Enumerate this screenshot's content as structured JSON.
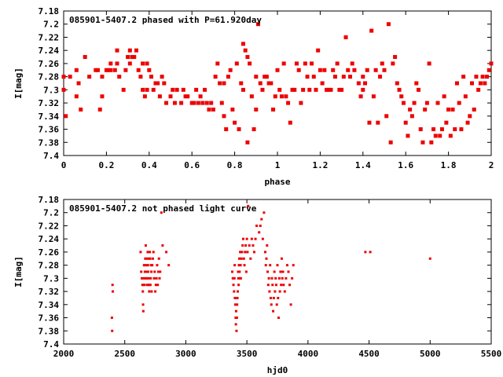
{
  "chart_data": [
    {
      "type": "scatter",
      "title": "085901-5407.2 phased with P=61.920day",
      "xlabel": "phase",
      "ylabel": "I[mag]",
      "xlim": [
        0,
        2
      ],
      "ylim": [
        7.4,
        7.18
      ],
      "y_inverted": true,
      "xticks": [
        "0",
        "0.2",
        "0.4",
        "0.6",
        "0.8",
        "1",
        "1.2",
        "1.4",
        "1.6",
        "1.8",
        "2"
      ],
      "yticks": [
        "7.18",
        "7.2",
        "7.22",
        "7.24",
        "7.26",
        "7.28",
        "7.3",
        "7.32",
        "7.34",
        "7.36",
        "7.38",
        "7.4"
      ],
      "marker_color": "#ee0000",
      "points": [
        [
          0.0,
          7.28
        ],
        [
          0.0,
          7.3
        ],
        [
          0.01,
          7.34
        ],
        [
          0.03,
          7.28
        ],
        [
          0.06,
          7.27
        ],
        [
          0.06,
          7.31
        ],
        [
          0.07,
          7.29
        ],
        [
          0.08,
          7.33
        ],
        [
          0.1,
          7.25
        ],
        [
          0.12,
          7.28
        ],
        [
          0.15,
          7.27
        ],
        [
          0.16,
          7.27
        ],
        [
          0.17,
          7.33
        ],
        [
          0.18,
          7.31
        ],
        [
          0.18,
          7.28
        ],
        [
          0.2,
          7.27
        ],
        [
          0.21,
          7.27
        ],
        [
          0.22,
          7.27
        ],
        [
          0.22,
          7.26
        ],
        [
          0.24,
          7.27
        ],
        [
          0.25,
          7.26
        ],
        [
          0.25,
          7.24
        ],
        [
          0.26,
          7.28
        ],
        [
          0.28,
          7.3
        ],
        [
          0.29,
          7.27
        ],
        [
          0.3,
          7.25
        ],
        [
          0.31,
          7.26
        ],
        [
          0.31,
          7.24
        ],
        [
          0.32,
          7.25
        ],
        [
          0.33,
          7.25
        ],
        [
          0.34,
          7.24
        ],
        [
          0.35,
          7.27
        ],
        [
          0.36,
          7.28
        ],
        [
          0.37,
          7.3
        ],
        [
          0.37,
          7.26
        ],
        [
          0.38,
          7.31
        ],
        [
          0.39,
          7.3
        ],
        [
          0.39,
          7.26
        ],
        [
          0.4,
          7.27
        ],
        [
          0.41,
          7.28
        ],
        [
          0.42,
          7.3
        ],
        [
          0.43,
          7.29
        ],
        [
          0.44,
          7.29
        ],
        [
          0.45,
          7.31
        ],
        [
          0.46,
          7.28
        ],
        [
          0.47,
          7.29
        ],
        [
          0.48,
          7.32
        ],
        [
          0.5,
          7.31
        ],
        [
          0.51,
          7.3
        ],
        [
          0.52,
          7.32
        ],
        [
          0.53,
          7.3
        ],
        [
          0.55,
          7.32
        ],
        [
          0.56,
          7.3
        ],
        [
          0.57,
          7.31
        ],
        [
          0.58,
          7.31
        ],
        [
          0.6,
          7.32
        ],
        [
          0.61,
          7.32
        ],
        [
          0.62,
          7.3
        ],
        [
          0.63,
          7.32
        ],
        [
          0.64,
          7.31
        ],
        [
          0.65,
          7.32
        ],
        [
          0.66,
          7.3
        ],
        [
          0.67,
          7.32
        ],
        [
          0.68,
          7.33
        ],
        [
          0.69,
          7.32
        ],
        [
          0.7,
          7.33
        ],
        [
          0.71,
          7.28
        ],
        [
          0.72,
          7.26
        ],
        [
          0.73,
          7.29
        ],
        [
          0.74,
          7.32
        ],
        [
          0.75,
          7.34
        ],
        [
          0.75,
          7.29
        ],
        [
          0.76,
          7.36
        ],
        [
          0.77,
          7.28
        ],
        [
          0.78,
          7.27
        ],
        [
          0.79,
          7.33
        ],
        [
          0.8,
          7.35
        ],
        [
          0.81,
          7.26
        ],
        [
          0.82,
          7.36
        ],
        [
          0.83,
          7.29
        ],
        [
          0.84,
          7.23
        ],
        [
          0.84,
          7.3
        ],
        [
          0.85,
          7.24
        ],
        [
          0.86,
          7.25
        ],
        [
          0.86,
          7.38
        ],
        [
          0.87,
          7.26
        ],
        [
          0.88,
          7.31
        ],
        [
          0.89,
          7.36
        ],
        [
          0.9,
          7.28
        ],
        [
          0.9,
          7.33
        ],
        [
          0.91,
          7.2
        ],
        [
          0.92,
          7.29
        ],
        [
          0.93,
          7.3
        ],
        [
          0.94,
          7.28
        ],
        [
          0.95,
          7.28
        ],
        [
          0.96,
          7.29
        ],
        [
          0.97,
          7.29
        ],
        [
          0.98,
          7.33
        ],
        [
          0.99,
          7.31
        ],
        [
          1.0,
          7.27
        ],
        [
          1.01,
          7.3
        ],
        [
          1.02,
          7.31
        ],
        [
          1.03,
          7.26
        ],
        [
          1.04,
          7.31
        ],
        [
          1.05,
          7.32
        ],
        [
          1.06,
          7.35
        ],
        [
          1.07,
          7.3
        ],
        [
          1.08,
          7.3
        ],
        [
          1.09,
          7.26
        ],
        [
          1.1,
          7.27
        ],
        [
          1.11,
          7.32
        ],
        [
          1.12,
          7.3
        ],
        [
          1.13,
          7.26
        ],
        [
          1.14,
          7.28
        ],
        [
          1.15,
          7.3
        ],
        [
          1.16,
          7.26
        ],
        [
          1.17,
          7.28
        ],
        [
          1.18,
          7.3
        ],
        [
          1.19,
          7.24
        ],
        [
          1.2,
          7.27
        ],
        [
          1.21,
          7.29
        ],
        [
          1.22,
          7.27
        ],
        [
          1.23,
          7.3
        ],
        [
          1.24,
          7.3
        ],
        [
          1.25,
          7.3
        ],
        [
          1.26,
          7.27
        ],
        [
          1.27,
          7.28
        ],
        [
          1.28,
          7.26
        ],
        [
          1.29,
          7.3
        ],
        [
          1.3,
          7.3
        ],
        [
          1.31,
          7.28
        ],
        [
          1.32,
          7.22
        ],
        [
          1.33,
          7.27
        ],
        [
          1.34,
          7.28
        ],
        [
          1.35,
          7.26
        ],
        [
          1.36,
          7.27
        ],
        [
          1.38,
          7.29
        ],
        [
          1.39,
          7.31
        ],
        [
          1.4,
          7.28
        ],
        [
          1.4,
          7.3
        ],
        [
          1.41,
          7.29
        ],
        [
          1.42,
          7.27
        ],
        [
          1.43,
          7.35
        ],
        [
          1.44,
          7.21
        ],
        [
          1.45,
          7.31
        ],
        [
          1.46,
          7.27
        ],
        [
          1.47,
          7.35
        ],
        [
          1.48,
          7.28
        ],
        [
          1.49,
          7.26
        ],
        [
          1.5,
          7.27
        ],
        [
          1.51,
          7.34
        ],
        [
          1.52,
          7.2
        ],
        [
          1.53,
          7.38
        ],
        [
          1.54,
          7.26
        ],
        [
          1.55,
          7.25
        ],
        [
          1.56,
          7.29
        ],
        [
          1.57,
          7.3
        ],
        [
          1.58,
          7.31
        ],
        [
          1.59,
          7.32
        ],
        [
          1.6,
          7.35
        ],
        [
          1.61,
          7.37
        ],
        [
          1.62,
          7.33
        ],
        [
          1.63,
          7.34
        ],
        [
          1.64,
          7.32
        ],
        [
          1.65,
          7.29
        ],
        [
          1.66,
          7.3
        ],
        [
          1.67,
          7.36
        ],
        [
          1.68,
          7.38
        ],
        [
          1.69,
          7.33
        ],
        [
          1.7,
          7.32
        ],
        [
          1.71,
          7.26
        ],
        [
          1.72,
          7.38
        ],
        [
          1.73,
          7.36
        ],
        [
          1.74,
          7.37
        ],
        [
          1.75,
          7.32
        ],
        [
          1.76,
          7.37
        ],
        [
          1.77,
          7.36
        ],
        [
          1.78,
          7.31
        ],
        [
          1.79,
          7.35
        ],
        [
          1.8,
          7.33
        ],
        [
          1.81,
          7.37
        ],
        [
          1.82,
          7.33
        ],
        [
          1.83,
          7.36
        ],
        [
          1.84,
          7.29
        ],
        [
          1.85,
          7.32
        ],
        [
          1.86,
          7.36
        ],
        [
          1.87,
          7.28
        ],
        [
          1.88,
          7.31
        ],
        [
          1.89,
          7.35
        ],
        [
          1.9,
          7.34
        ],
        [
          1.91,
          7.29
        ],
        [
          1.92,
          7.33
        ],
        [
          1.93,
          7.28
        ],
        [
          1.94,
          7.3
        ],
        [
          1.95,
          7.29
        ],
        [
          1.96,
          7.28
        ],
        [
          1.97,
          7.29
        ],
        [
          1.98,
          7.28
        ],
        [
          1.99,
          7.27
        ],
        [
          2.0,
          7.26
        ]
      ]
    },
    {
      "type": "scatter",
      "title": "085901-5407.2 not phased light curve",
      "xlabel": "hjd0",
      "ylabel": "I[mag]",
      "xlim": [
        2000,
        5500
      ],
      "ylim": [
        7.4,
        7.18
      ],
      "y_inverted": true,
      "xticks": [
        "2000",
        "2500",
        "3000",
        "3500",
        "4000",
        "4500",
        "5000",
        "5500"
      ],
      "yticks": [
        "7.18",
        "7.2",
        "7.22",
        "7.24",
        "7.26",
        "7.28",
        "7.3",
        "7.32",
        "7.34",
        "7.36",
        "7.38",
        "7.4"
      ],
      "marker_color": "#ee0000",
      "points": [
        [
          2395,
          7.36
        ],
        [
          2397,
          7.38
        ],
        [
          2400,
          7.31
        ],
        [
          2402,
          7.32
        ],
        [
          2630,
          7.26
        ],
        [
          2635,
          7.29
        ],
        [
          2640,
          7.3
        ],
        [
          2645,
          7.31
        ],
        [
          2648,
          7.32
        ],
        [
          2650,
          7.34
        ],
        [
          2652,
          7.35
        ],
        [
          2655,
          7.3
        ],
        [
          2658,
          7.28
        ],
        [
          2660,
          7.31
        ],
        [
          2665,
          7.29
        ],
        [
          2668,
          7.27
        ],
        [
          2670,
          7.3
        ],
        [
          2672,
          7.25
        ],
        [
          2675,
          7.28
        ],
        [
          2678,
          7.29
        ],
        [
          2680,
          7.3
        ],
        [
          2682,
          7.31
        ],
        [
          2685,
          7.27
        ],
        [
          2688,
          7.26
        ],
        [
          2690,
          7.28
        ],
        [
          2692,
          7.29
        ],
        [
          2695,
          7.3
        ],
        [
          2698,
          7.31
        ],
        [
          2700,
          7.32
        ],
        [
          2702,
          7.27
        ],
        [
          2705,
          7.26
        ],
        [
          2708,
          7.27
        ],
        [
          2710,
          7.31
        ],
        [
          2712,
          7.3
        ],
        [
          2715,
          7.28
        ],
        [
          2718,
          7.29
        ],
        [
          2720,
          7.32
        ],
        [
          2725,
          7.28
        ],
        [
          2730,
          7.27
        ],
        [
          2735,
          7.26
        ],
        [
          2740,
          7.3
        ],
        [
          2745,
          7.29
        ],
        [
          2750,
          7.32
        ],
        [
          2755,
          7.31
        ],
        [
          2760,
          7.3
        ],
        [
          2765,
          7.28
        ],
        [
          2770,
          7.31
        ],
        [
          2775,
          7.29
        ],
        [
          2780,
          7.27
        ],
        [
          2785,
          7.3
        ],
        [
          2790,
          7.29
        ],
        [
          2800,
          7.2
        ],
        [
          2810,
          7.25
        ],
        [
          2840,
          7.26
        ],
        [
          2860,
          7.28
        ],
        [
          3380,
          7.29
        ],
        [
          3385,
          7.3
        ],
        [
          3390,
          7.31
        ],
        [
          3395,
          7.32
        ],
        [
          3398,
          7.3
        ],
        [
          3400,
          7.28
        ],
        [
          3402,
          7.33
        ],
        [
          3405,
          7.34
        ],
        [
          3408,
          7.36
        ],
        [
          3410,
          7.37
        ],
        [
          3412,
          7.35
        ],
        [
          3415,
          7.38
        ],
        [
          3418,
          7.36
        ],
        [
          3420,
          7.34
        ],
        [
          3422,
          7.33
        ],
        [
          3425,
          7.32
        ],
        [
          3428,
          7.29
        ],
        [
          3430,
          7.3
        ],
        [
          3432,
          7.31
        ],
        [
          3435,
          7.28
        ],
        [
          3438,
          7.27
        ],
        [
          3440,
          7.29
        ],
        [
          3442,
          7.3
        ],
        [
          3445,
          7.26
        ],
        [
          3448,
          7.28
        ],
        [
          3450,
          7.3
        ],
        [
          3455,
          7.27
        ],
        [
          3460,
          7.26
        ],
        [
          3465,
          7.25
        ],
        [
          3470,
          7.24
        ],
        [
          3475,
          7.27
        ],
        [
          3480,
          7.28
        ],
        [
          3485,
          7.26
        ],
        [
          3490,
          7.25
        ],
        [
          3495,
          7.29
        ],
        [
          3500,
          7.24
        ],
        [
          3505,
          7.26
        ],
        [
          3510,
          7.19
        ],
        [
          3520,
          7.25
        ],
        [
          3530,
          7.27
        ],
        [
          3540,
          7.24
        ],
        [
          3550,
          7.25
        ],
        [
          3560,
          7.26
        ],
        [
          3570,
          7.24
        ],
        [
          3580,
          7.22
        ],
        [
          3600,
          7.23
        ],
        [
          3610,
          7.22
        ],
        [
          3620,
          7.21
        ],
        [
          3630,
          7.24
        ],
        [
          3640,
          7.2
        ],
        [
          3650,
          7.26
        ],
        [
          3655,
          7.28
        ],
        [
          3660,
          7.27
        ],
        [
          3665,
          7.25
        ],
        [
          3670,
          7.29
        ],
        [
          3675,
          7.31
        ],
        [
          3680,
          7.3
        ],
        [
          3685,
          7.32
        ],
        [
          3690,
          7.28
        ],
        [
          3695,
          7.33
        ],
        [
          3700,
          7.34
        ],
        [
          3705,
          7.3
        ],
        [
          3710,
          7.31
        ],
        [
          3715,
          7.35
        ],
        [
          3720,
          7.33
        ],
        [
          3725,
          7.29
        ],
        [
          3730,
          7.32
        ],
        [
          3735,
          7.3
        ],
        [
          3740,
          7.31
        ],
        [
          3745,
          7.34
        ],
        [
          3750,
          7.28
        ],
        [
          3755,
          7.33
        ],
        [
          3760,
          7.36
        ],
        [
          3765,
          7.3
        ],
        [
          3770,
          7.32
        ],
        [
          3775,
          7.29
        ],
        [
          3780,
          7.31
        ],
        [
          3785,
          7.27
        ],
        [
          3790,
          7.3
        ],
        [
          3795,
          7.29
        ],
        [
          3800,
          7.31
        ],
        [
          3810,
          7.32
        ],
        [
          3820,
          7.3
        ],
        [
          3830,
          7.28
        ],
        [
          3840,
          7.29
        ],
        [
          3850,
          7.31
        ],
        [
          3860,
          7.34
        ],
        [
          3870,
          7.3
        ],
        [
          3880,
          7.28
        ],
        [
          4470,
          7.26
        ],
        [
          4510,
          7.26
        ],
        [
          5000,
          7.27
        ]
      ]
    }
  ]
}
